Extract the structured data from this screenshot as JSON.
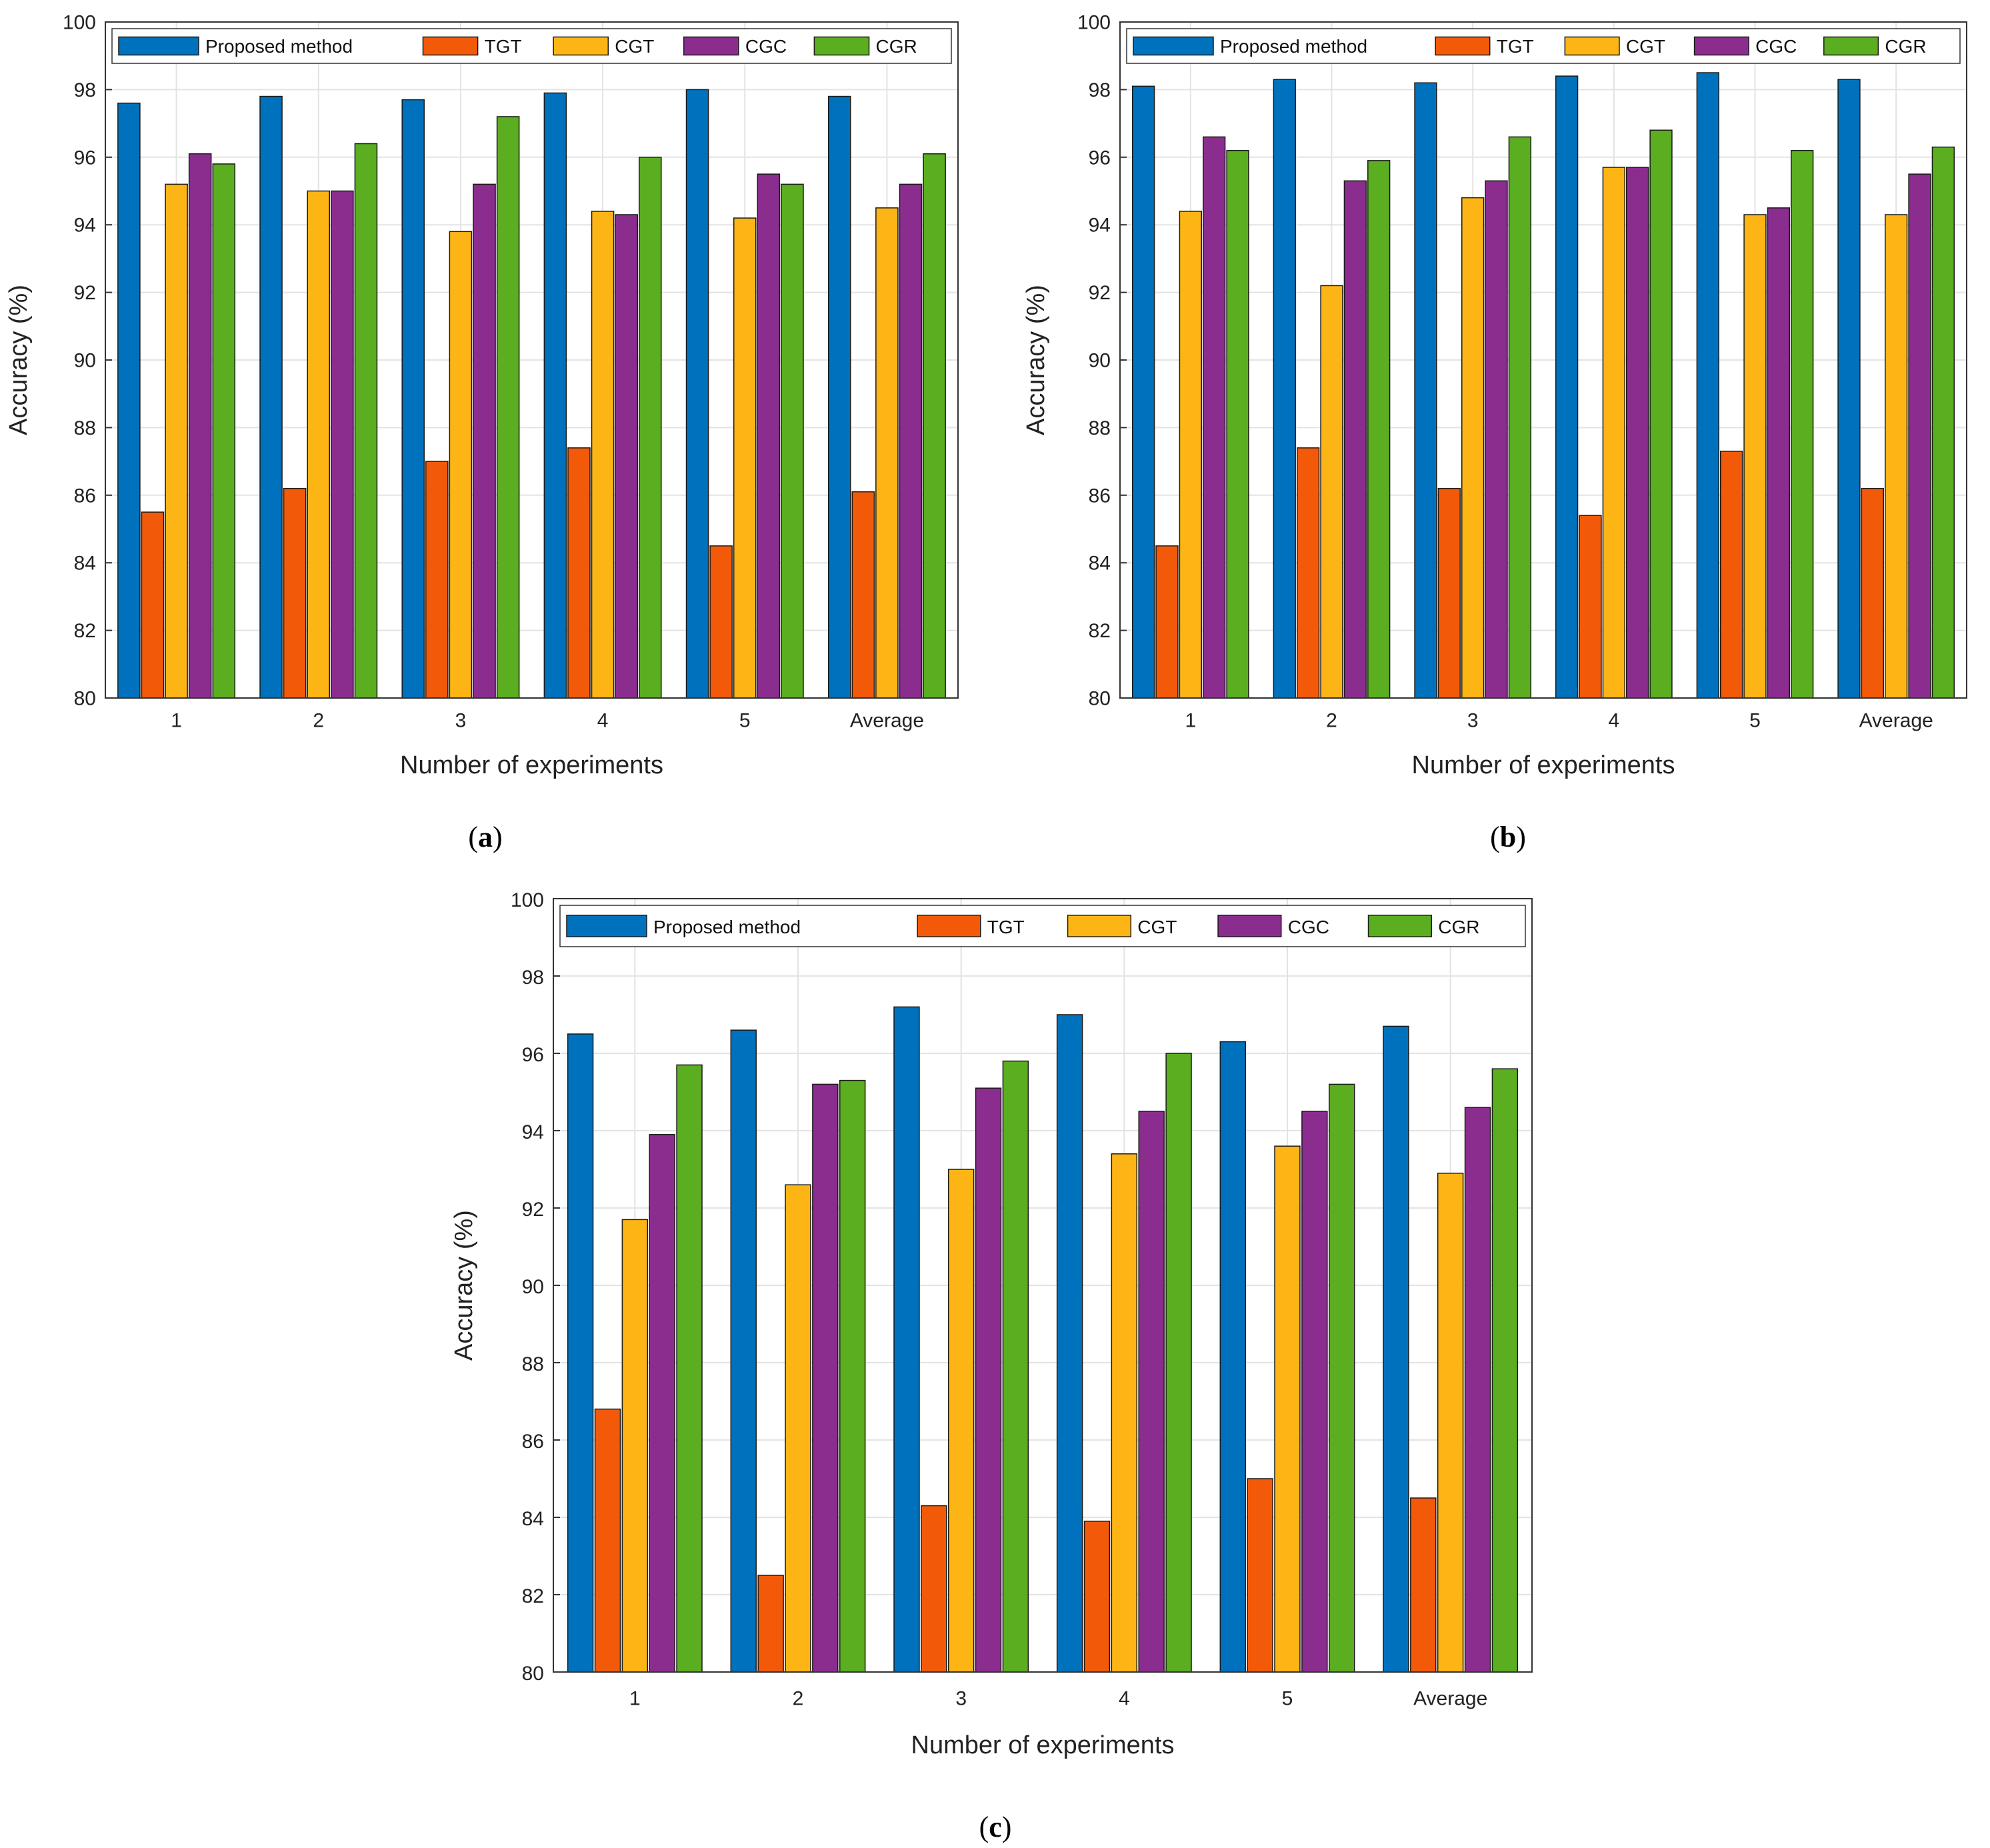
{
  "figure": {
    "panel_labels": [
      {
        "open": "(",
        "letter": "a",
        "close": ")"
      },
      {
        "open": "(",
        "letter": "b",
        "close": ")"
      },
      {
        "open": "(",
        "letter": "c",
        "close": ")"
      }
    ]
  },
  "colors": {
    "Proposed method": "#0072BD",
    "TGT": "#F25A0A",
    "CGT": "#FDB515",
    "CGC": "#8B2D8F",
    "CGR": "#5AAE1F"
  },
  "chart_data": [
    {
      "type": "bar",
      "panel": "a",
      "xlabel": "Number of experiments",
      "ylabel": "Accuracy (%)",
      "ylim": [
        80,
        100
      ],
      "yticks": [
        80,
        82,
        84,
        86,
        88,
        90,
        92,
        94,
        96,
        98,
        100
      ],
      "grid": true,
      "legend_position": "top",
      "categories": [
        "1",
        "2",
        "3",
        "4",
        "5",
        "Average"
      ],
      "series": [
        {
          "name": "Proposed method",
          "values": [
            97.6,
            97.8,
            97.7,
            97.9,
            98.0,
            97.8
          ]
        },
        {
          "name": "TGT",
          "values": [
            85.5,
            86.2,
            87.0,
            87.4,
            84.5,
            86.1
          ]
        },
        {
          "name": "CGT",
          "values": [
            95.2,
            95.0,
            93.8,
            94.4,
            94.2,
            94.5
          ]
        },
        {
          "name": "CGC",
          "values": [
            96.1,
            95.0,
            95.2,
            94.3,
            95.5,
            95.2
          ]
        },
        {
          "name": "CGR",
          "values": [
            95.8,
            96.4,
            97.2,
            96.0,
            95.2,
            96.1
          ]
        }
      ]
    },
    {
      "type": "bar",
      "panel": "b",
      "xlabel": "Number of experiments",
      "ylabel": "Accuracy (%)",
      "ylim": [
        80,
        100
      ],
      "yticks": [
        80,
        82,
        84,
        86,
        88,
        90,
        92,
        94,
        96,
        98,
        100
      ],
      "grid": true,
      "legend_position": "top",
      "categories": [
        "1",
        "2",
        "3",
        "4",
        "5",
        "Average"
      ],
      "series": [
        {
          "name": "Proposed method",
          "values": [
            98.1,
            98.3,
            98.2,
            98.4,
            98.5,
            98.3
          ]
        },
        {
          "name": "TGT",
          "values": [
            84.5,
            87.4,
            86.2,
            85.4,
            87.3,
            86.2
          ]
        },
        {
          "name": "CGT",
          "values": [
            94.4,
            92.2,
            94.8,
            95.7,
            94.3,
            94.3
          ]
        },
        {
          "name": "CGC",
          "values": [
            96.6,
            95.3,
            95.3,
            95.7,
            94.5,
            95.5
          ]
        },
        {
          "name": "CGR",
          "values": [
            96.2,
            95.9,
            96.6,
            96.8,
            96.2,
            96.3
          ]
        }
      ]
    },
    {
      "type": "bar",
      "panel": "c",
      "xlabel": "Number of experiments",
      "ylabel": "Accuracy (%)",
      "ylim": [
        80,
        100
      ],
      "yticks": [
        80,
        82,
        84,
        86,
        88,
        90,
        92,
        94,
        96,
        98,
        100
      ],
      "grid": true,
      "legend_position": "top",
      "categories": [
        "1",
        "2",
        "3",
        "4",
        "5",
        "Average"
      ],
      "series": [
        {
          "name": "Proposed method",
          "values": [
            96.5,
            96.6,
            97.2,
            97.0,
            96.3,
            96.7
          ]
        },
        {
          "name": "TGT",
          "values": [
            86.8,
            82.5,
            84.3,
            83.9,
            85.0,
            84.5
          ]
        },
        {
          "name": "CGT",
          "values": [
            91.7,
            92.6,
            93.0,
            93.4,
            93.6,
            92.9
          ]
        },
        {
          "name": "CGC",
          "values": [
            93.9,
            95.2,
            95.1,
            94.5,
            94.5,
            94.6
          ]
        },
        {
          "name": "CGR",
          "values": [
            95.7,
            95.3,
            95.8,
            96.0,
            95.2,
            95.6
          ]
        }
      ]
    }
  ]
}
